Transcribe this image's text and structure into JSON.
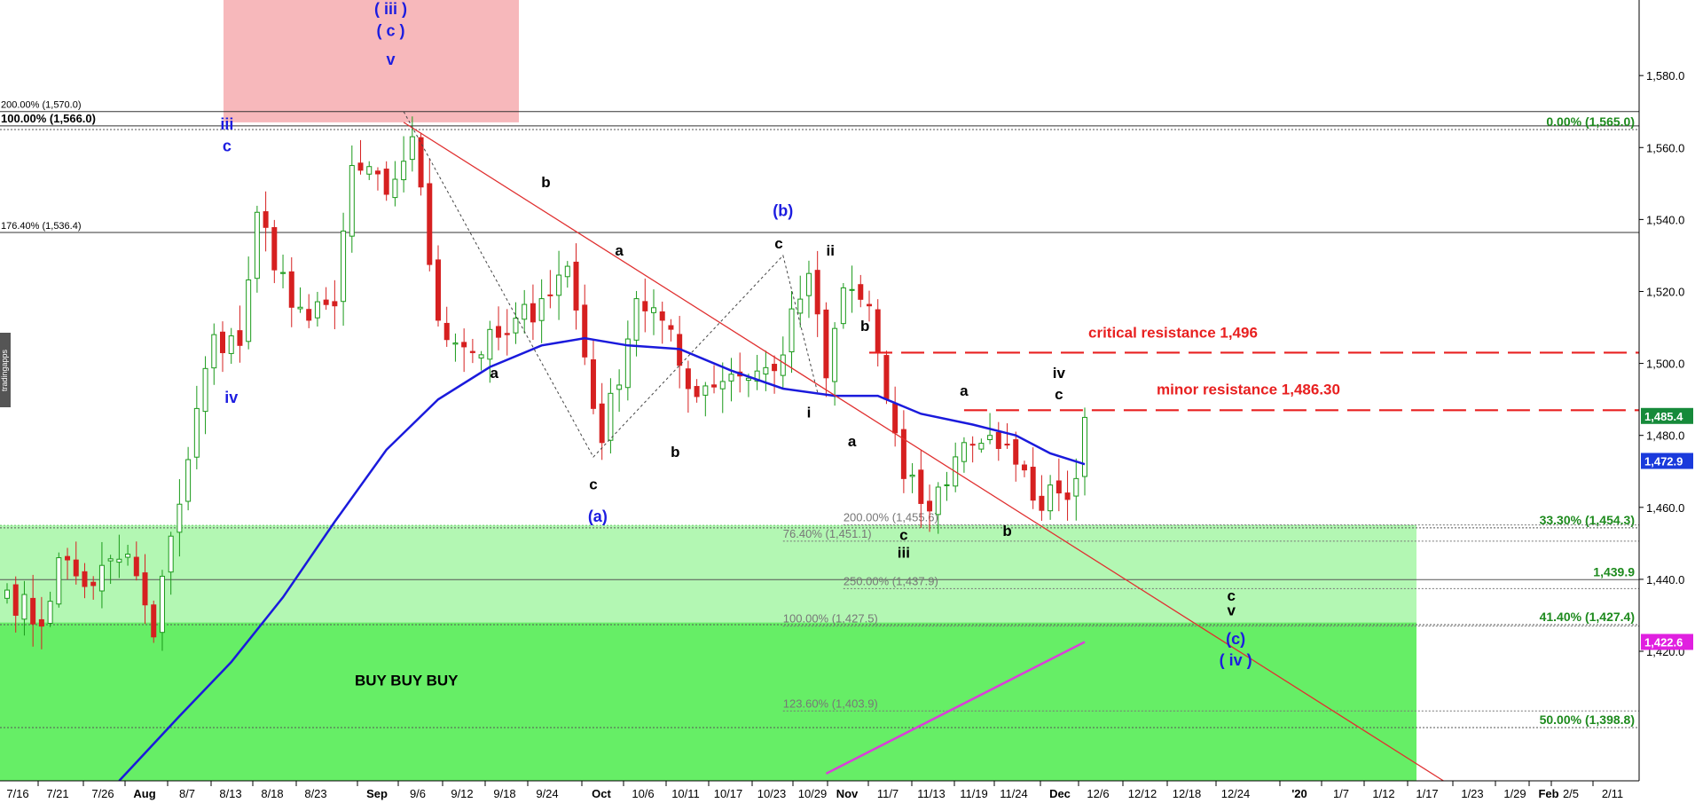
{
  "chart_data": {
    "type": "line",
    "ylim": [
      1384,
      1601
    ],
    "ylabel": "",
    "xlabel": "",
    "title": "",
    "y_ticks": [
      {
        "value": 1580,
        "label": "1,580.0"
      },
      {
        "value": 1560,
        "label": "1,560.0"
      },
      {
        "value": 1540,
        "label": "1,540.0"
      },
      {
        "value": 1520,
        "label": "1,520.0"
      },
      {
        "value": 1500,
        "label": "1,500.0"
      },
      {
        "value": 1480,
        "label": "1,480.0"
      },
      {
        "value": 1460,
        "label": "1,460.0"
      },
      {
        "value": 1440,
        "label": "1,440.0"
      },
      {
        "value": 1420,
        "label": "1,420.0"
      }
    ],
    "x_ticks": [
      "7/16",
      "7/21",
      "7/26",
      "Aug",
      "8/7",
      "8/13",
      "8/18",
      "8/23",
      "Sep",
      "9/6",
      "9/12",
      "9/18",
      "9/24",
      "Oct",
      "10/6",
      "10/11",
      "10/17",
      "10/23",
      "10/29",
      "Nov",
      "11/7",
      "11/13",
      "11/19",
      "11/24",
      "Dec",
      "12/6",
      "12/12",
      "12/18",
      "12/24",
      "'20",
      "1/7",
      "1/12",
      "1/17",
      "1/23",
      "1/29",
      "Feb",
      "2/5",
      "2/11"
    ],
    "close_anchors": [
      {
        "d": 0,
        "v": 1437
      },
      {
        "d": 4,
        "v": 1427
      },
      {
        "d": 6,
        "v": 1446
      },
      {
        "d": 9,
        "v": 1438
      },
      {
        "d": 14,
        "v": 1447
      },
      {
        "d": 17,
        "v": 1424
      },
      {
        "d": 19,
        "v": 1452
      },
      {
        "d": 24,
        "v": 1508
      },
      {
        "d": 27,
        "v": 1505
      },
      {
        "d": 29,
        "v": 1542
      },
      {
        "d": 31,
        "v": 1526
      },
      {
        "d": 35,
        "v": 1512
      },
      {
        "d": 38,
        "v": 1516
      },
      {
        "d": 40,
        "v": 1555
      },
      {
        "d": 44,
        "v": 1547
      },
      {
        "d": 47,
        "v": 1563
      },
      {
        "d": 50,
        "v": 1512
      },
      {
        "d": 54,
        "v": 1503
      },
      {
        "d": 58,
        "v": 1508
      },
      {
        "d": 62,
        "v": 1518
      },
      {
        "d": 65,
        "v": 1527
      },
      {
        "d": 69,
        "v": 1478
      },
      {
        "d": 73,
        "v": 1518
      },
      {
        "d": 76,
        "v": 1512
      },
      {
        "d": 79,
        "v": 1493
      },
      {
        "d": 84,
        "v": 1497
      },
      {
        "d": 89,
        "v": 1498
      },
      {
        "d": 93,
        "v": 1525
      },
      {
        "d": 95,
        "v": 1496
      },
      {
        "d": 97,
        "v": 1521
      },
      {
        "d": 100,
        "v": 1516
      },
      {
        "d": 102,
        "v": 1490
      },
      {
        "d": 104,
        "v": 1468
      },
      {
        "d": 107,
        "v": 1459
      },
      {
        "d": 111,
        "v": 1478
      },
      {
        "d": 114,
        "v": 1480
      },
      {
        "d": 117,
        "v": 1472
      },
      {
        "d": 119,
        "v": 1462
      },
      {
        "d": 122,
        "v": 1464
      },
      {
        "d": 124,
        "v": 1468
      },
      {
        "d": 125,
        "v": 1485
      }
    ],
    "moving_average": {
      "color": "#1a1adc",
      "points": [
        {
          "d": 13,
          "v": 1384
        },
        {
          "d": 20,
          "v": 1402
        },
        {
          "d": 26,
          "v": 1417
        },
        {
          "d": 32,
          "v": 1435
        },
        {
          "d": 38,
          "v": 1456
        },
        {
          "d": 44,
          "v": 1476
        },
        {
          "d": 50,
          "v": 1490
        },
        {
          "d": 56,
          "v": 1499
        },
        {
          "d": 62,
          "v": 1505
        },
        {
          "d": 67,
          "v": 1507
        },
        {
          "d": 72,
          "v": 1505
        },
        {
          "d": 78,
          "v": 1504
        },
        {
          "d": 84,
          "v": 1498
        },
        {
          "d": 90,
          "v": 1493
        },
        {
          "d": 96,
          "v": 1491
        },
        {
          "d": 101,
          "v": 1491
        },
        {
          "d": 106,
          "v": 1486
        },
        {
          "d": 112,
          "v": 1483
        },
        {
          "d": 117,
          "v": 1480
        },
        {
          "d": 121,
          "v": 1475
        },
        {
          "d": 125,
          "v": 1472
        }
      ]
    },
    "last_price": "1,485.4",
    "ma_value": "1,472.9",
    "magenta_value": "1,422.6",
    "horizontal_levels": [
      {
        "v": 1570.0,
        "label": "200.00% (1,570.0)",
        "side": "left",
        "color": "#000000",
        "style": "solid"
      },
      {
        "v": 1566.0,
        "label": "100.00% (1,566.0)",
        "side": "left",
        "color": "#000000",
        "style": "solid",
        "bold": true
      },
      {
        "v": 1565.0,
        "label": "0.00% (1,565.0)",
        "side": "right",
        "color": "#1d8a1d",
        "style": "dotted"
      },
      {
        "v": 1536.4,
        "label": "176.40% (1,536.4)",
        "side": "left",
        "color": "#000000",
        "style": "solid"
      },
      {
        "v": 1454.3,
        "label": "33.30% (1,454.3)",
        "side": "right",
        "color": "#1d8a1d",
        "style": "dotted"
      },
      {
        "v": 1439.9,
        "label": "1,439.9",
        "side": "right",
        "color": "#1d8a1d",
        "style": "solid"
      },
      {
        "v": 1427.4,
        "label": "41.40% (1,427.4)",
        "side": "right",
        "color": "#1d8a1d",
        "style": "dotted"
      },
      {
        "v": 1398.8,
        "label": "50.00% (1,398.8)",
        "side": "right",
        "color": "#1d8a1d",
        "style": "dotted"
      }
    ],
    "fib_ext_labels": [
      {
        "d": 97,
        "v": 1455.6,
        "label": "200.00% (1,455.6)"
      },
      {
        "d": 90,
        "v": 1451.1,
        "label": "76.40% (1,451.1)"
      },
      {
        "d": 97,
        "v": 1437.9,
        "label": "250.00% (1,437.9)"
      },
      {
        "d": 90,
        "v": 1427.5,
        "label": "100.00% (1,427.5)"
      },
      {
        "d": 90,
        "v": 1403.9,
        "label": "123.60% (1,403.9)"
      }
    ],
    "resistance_lines": [
      {
        "v": 1503,
        "d_start": 100,
        "label": "critical resistance 1,496"
      },
      {
        "v": 1487,
        "d_start": 111,
        "label": "minor resistance 1,486.30"
      }
    ],
    "wave_labels_black": [
      {
        "d": 62.5,
        "v": 1549,
        "text": "b"
      },
      {
        "d": 56.5,
        "v": 1496,
        "text": "a"
      },
      {
        "d": 71,
        "v": 1530,
        "text": "a"
      },
      {
        "d": 68,
        "v": 1465,
        "text": "c"
      },
      {
        "d": 77.5,
        "v": 1474,
        "text": "b"
      },
      {
        "d": 89.5,
        "v": 1532,
        "text": "c"
      },
      {
        "d": 95.5,
        "v": 1530,
        "text": "ii"
      },
      {
        "d": 99.5,
        "v": 1509,
        "text": "b"
      },
      {
        "d": 93,
        "v": 1485,
        "text": "i"
      },
      {
        "d": 98,
        "v": 1477,
        "text": "a"
      },
      {
        "d": 104,
        "v": 1451,
        "text": "c"
      },
      {
        "d": 104,
        "v": 1446,
        "text": "iii"
      },
      {
        "d": 111,
        "v": 1491,
        "text": "a"
      },
      {
        "d": 116,
        "v": 1452,
        "text": "b"
      },
      {
        "d": 122,
        "v": 1496,
        "text": "iv"
      },
      {
        "d": 122,
        "v": 1490,
        "text": "c"
      },
      {
        "d": 142,
        "v": 1434,
        "text": "c"
      },
      {
        "d": 142,
        "v": 1430,
        "text": "v"
      }
    ],
    "wave_labels_blue": [
      {
        "d": 44.5,
        "v": 1597,
        "text": "( iii )"
      },
      {
        "d": 44.5,
        "v": 1591,
        "text": "( c )"
      },
      {
        "d": 44.5,
        "v": 1583,
        "text": "v"
      },
      {
        "d": 25.5,
        "v": 1565,
        "text": "iii"
      },
      {
        "d": 25.5,
        "v": 1559,
        "text": "c"
      },
      {
        "d": 26,
        "v": 1489,
        "text": "iv"
      },
      {
        "d": 90,
        "v": 1541,
        "text": "(b)"
      },
      {
        "d": 68.5,
        "v": 1456,
        "text": "(a)"
      },
      {
        "d": 142.5,
        "v": 1422,
        "text": "(c)"
      },
      {
        "d": 142.5,
        "v": 1416,
        "text": "( iv )"
      }
    ],
    "zones": [
      {
        "label": "",
        "color": "#f7b8bb"
      },
      {
        "label": "",
        "color": "#b3f7b3"
      },
      {
        "label": "BUY BUY BUY",
        "color": "#66ee66"
      }
    ]
  },
  "watermark": "tradingapps"
}
